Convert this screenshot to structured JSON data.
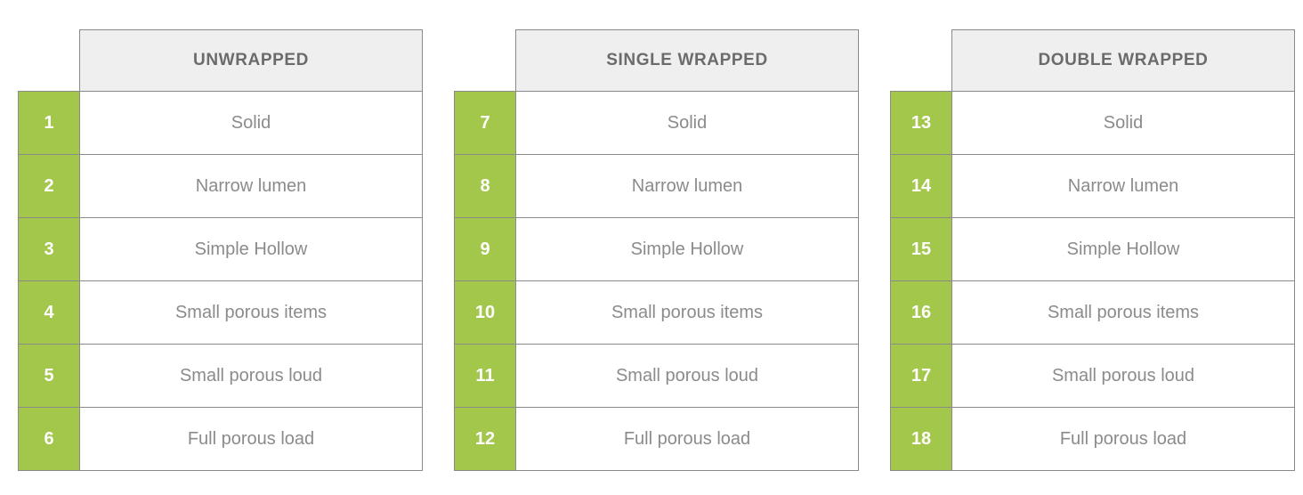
{
  "colors": {
    "accent_green": "#a3c74b",
    "header_background": "#efefef",
    "border_gray": "#8a8a8a",
    "header_text": "#6b6b6b",
    "label_text": "#8b8b8b",
    "number_text": "#ffffff",
    "page_background": "#ffffff"
  },
  "tables": [
    {
      "title": "UNWRAPPED",
      "rows": [
        {
          "num": "1",
          "label": "Solid"
        },
        {
          "num": "2",
          "label": "Narrow lumen"
        },
        {
          "num": "3",
          "label": "Simple Hollow"
        },
        {
          "num": "4",
          "label": "Small porous items"
        },
        {
          "num": "5",
          "label": "Small porous loud"
        },
        {
          "num": "6",
          "label": "Full porous load"
        }
      ]
    },
    {
      "title": "SINGLE WRAPPED",
      "rows": [
        {
          "num": "7",
          "label": "Solid"
        },
        {
          "num": "8",
          "label": "Narrow lumen"
        },
        {
          "num": "9",
          "label": "Simple Hollow"
        },
        {
          "num": "10",
          "label": "Small porous items"
        },
        {
          "num": "11",
          "label": "Small porous loud"
        },
        {
          "num": "12",
          "label": "Full porous load"
        }
      ]
    },
    {
      "title": "DOUBLE WRAPPED",
      "rows": [
        {
          "num": "13",
          "label": "Solid"
        },
        {
          "num": "14",
          "label": "Narrow lumen"
        },
        {
          "num": "15",
          "label": "Simple Hollow"
        },
        {
          "num": "16",
          "label": "Small porous items"
        },
        {
          "num": "17",
          "label": "Small porous loud"
        },
        {
          "num": "18",
          "label": "Full porous load"
        }
      ]
    }
  ]
}
